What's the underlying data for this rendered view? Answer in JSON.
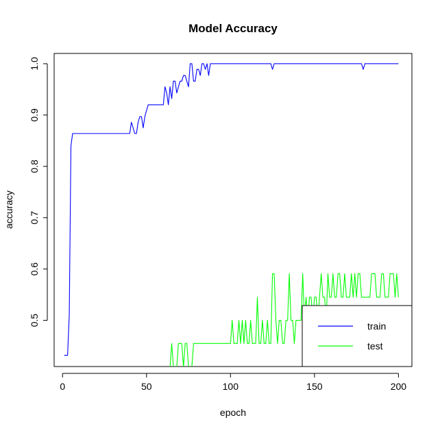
{
  "chart_data": {
    "type": "line",
    "title": "Model Accuracy",
    "xlabel": "epoch",
    "ylabel": "accuracy",
    "xlim": [
      -5,
      208
    ],
    "ylim": [
      0.41,
      1.02
    ],
    "xticks": [
      0,
      50,
      100,
      150,
      200
    ],
    "yticks": [
      0.5,
      0.6,
      0.7,
      0.8,
      0.9,
      1.0
    ],
    "xtick_labels": [
      "0",
      "50",
      "100",
      "150",
      "200"
    ],
    "ytick_labels": [
      "0.5",
      "0.6",
      "0.7",
      "0.8",
      "0.9",
      "1.0"
    ],
    "grid": false,
    "legend_position": "bottom-right",
    "series": [
      {
        "name": "train",
        "color": "#0000ff",
        "points": [
          [
            1,
            0.432
          ],
          [
            2,
            0.432
          ],
          [
            3,
            0.432
          ],
          [
            4,
            0.51
          ],
          [
            5,
            0.84
          ],
          [
            6,
            0.864
          ],
          [
            10,
            0.864
          ],
          [
            20,
            0.864
          ],
          [
            30,
            0.864
          ],
          [
            40,
            0.864
          ],
          [
            41,
            0.886
          ],
          [
            42,
            0.875
          ],
          [
            43,
            0.864
          ],
          [
            44,
            0.864
          ],
          [
            45,
            0.886
          ],
          [
            46,
            0.897
          ],
          [
            47,
            0.897
          ],
          [
            48,
            0.875
          ],
          [
            49,
            0.897
          ],
          [
            50,
            0.909
          ],
          [
            51,
            0.92
          ],
          [
            55,
            0.92
          ],
          [
            59,
            0.92
          ],
          [
            60,
            0.92
          ],
          [
            61,
            0.955
          ],
          [
            62,
            0.943
          ],
          [
            63,
            0.92
          ],
          [
            64,
            0.955
          ],
          [
            65,
            0.932
          ],
          [
            66,
            0.966
          ],
          [
            67,
            0.966
          ],
          [
            68,
            0.943
          ],
          [
            69,
            0.955
          ],
          [
            70,
            0.966
          ],
          [
            71,
            0.966
          ],
          [
            72,
            0.977
          ],
          [
            73,
            0.977
          ],
          [
            74,
            0.966
          ],
          [
            75,
            0.955
          ],
          [
            76,
            1.0
          ],
          [
            77,
            1.0
          ],
          [
            78,
            0.966
          ],
          [
            79,
            0.966
          ],
          [
            80,
            0.989
          ],
          [
            81,
            0.989
          ],
          [
            82,
            0.977
          ],
          [
            83,
            1.0
          ],
          [
            84,
            1.0
          ],
          [
            85,
            0.989
          ],
          [
            86,
            1.0
          ],
          [
            87,
            0.977
          ],
          [
            88,
            1.0
          ],
          [
            90,
            1.0
          ],
          [
            100,
            1.0
          ],
          [
            110,
            1.0
          ],
          [
            120,
            1.0
          ],
          [
            124,
            1.0
          ],
          [
            125,
            0.989
          ],
          [
            126,
            1.0
          ],
          [
            130,
            1.0
          ],
          [
            150,
            1.0
          ],
          [
            170,
            1.0
          ],
          [
            178,
            1.0
          ],
          [
            179,
            0.989
          ],
          [
            180,
            1.0
          ],
          [
            190,
            1.0
          ],
          [
            200,
            1.0
          ]
        ]
      },
      {
        "name": "test",
        "color": "#00ff00",
        "points": [
          [
            1,
            0.409
          ],
          [
            30,
            0.409
          ],
          [
            60,
            0.409
          ],
          [
            64,
            0.409
          ],
          [
            65,
            0.455
          ],
          [
            66,
            0.409
          ],
          [
            67,
            0.409
          ],
          [
            68,
            0.409
          ],
          [
            69,
            0.455
          ],
          [
            70,
            0.455
          ],
          [
            71,
            0.455
          ],
          [
            72,
            0.409
          ],
          [
            73,
            0.455
          ],
          [
            74,
            0.455
          ],
          [
            75,
            0.409
          ],
          [
            76,
            0.409
          ],
          [
            77,
            0.409
          ],
          [
            78,
            0.455
          ],
          [
            80,
            0.455
          ],
          [
            90,
            0.455
          ],
          [
            100,
            0.455
          ],
          [
            101,
            0.5
          ],
          [
            102,
            0.455
          ],
          [
            103,
            0.455
          ],
          [
            104,
            0.455
          ],
          [
            105,
            0.5
          ],
          [
            106,
            0.455
          ],
          [
            107,
            0.5
          ],
          [
            108,
            0.455
          ],
          [
            109,
            0.5
          ],
          [
            110,
            0.455
          ],
          [
            111,
            0.455
          ],
          [
            112,
            0.5
          ],
          [
            113,
            0.455
          ],
          [
            114,
            0.455
          ],
          [
            115,
            0.455
          ],
          [
            116,
            0.545
          ],
          [
            117,
            0.455
          ],
          [
            118,
            0.455
          ],
          [
            119,
            0.5
          ],
          [
            120,
            0.455
          ],
          [
            121,
            0.455
          ],
          [
            122,
            0.5
          ],
          [
            123,
            0.455
          ],
          [
            124,
            0.455
          ],
          [
            125,
            0.591
          ],
          [
            126,
            0.591
          ],
          [
            127,
            0.5
          ],
          [
            128,
            0.455
          ],
          [
            129,
            0.5
          ],
          [
            130,
            0.5
          ],
          [
            131,
            0.455
          ],
          [
            132,
            0.455
          ],
          [
            133,
            0.5
          ],
          [
            134,
            0.5
          ],
          [
            135,
            0.591
          ],
          [
            136,
            0.5
          ],
          [
            137,
            0.5
          ],
          [
            138,
            0.455
          ],
          [
            139,
            0.5
          ],
          [
            140,
            0.5
          ],
          [
            141,
            0.5
          ],
          [
            142,
            0.5
          ],
          [
            143,
            0.591
          ],
          [
            144,
            0.5
          ],
          [
            145,
            0.545
          ],
          [
            146,
            0.5
          ],
          [
            147,
            0.545
          ],
          [
            148,
            0.545
          ],
          [
            149,
            0.5
          ],
          [
            150,
            0.545
          ],
          [
            151,
            0.545
          ],
          [
            152,
            0.5
          ],
          [
            153,
            0.545
          ],
          [
            154,
            0.591
          ],
          [
            155,
            0.545
          ],
          [
            156,
            0.545
          ],
          [
            157,
            0.5
          ],
          [
            158,
            0.591
          ],
          [
            159,
            0.545
          ],
          [
            160,
            0.545
          ],
          [
            161,
            0.591
          ],
          [
            162,
            0.545
          ],
          [
            163,
            0.545
          ],
          [
            164,
            0.591
          ],
          [
            165,
            0.591
          ],
          [
            166,
            0.545
          ],
          [
            167,
            0.545
          ],
          [
            168,
            0.591
          ],
          [
            169,
            0.545
          ],
          [
            170,
            0.545
          ],
          [
            171,
            0.545
          ],
          [
            172,
            0.591
          ],
          [
            173,
            0.545
          ],
          [
            174,
            0.591
          ],
          [
            175,
            0.545
          ],
          [
            176,
            0.591
          ],
          [
            177,
            0.591
          ],
          [
            178,
            0.545
          ],
          [
            179,
            0.545
          ],
          [
            180,
            0.545
          ],
          [
            181,
            0.545
          ],
          [
            182,
            0.545
          ],
          [
            183,
            0.545
          ],
          [
            184,
            0.591
          ],
          [
            185,
            0.591
          ],
          [
            186,
            0.591
          ],
          [
            187,
            0.545
          ],
          [
            188,
            0.545
          ],
          [
            189,
            0.545
          ],
          [
            190,
            0.591
          ],
          [
            191,
            0.591
          ],
          [
            192,
            0.545
          ],
          [
            193,
            0.545
          ],
          [
            194,
            0.545
          ],
          [
            195,
            0.591
          ],
          [
            196,
            0.591
          ],
          [
            197,
            0.591
          ],
          [
            198,
            0.545
          ],
          [
            199,
            0.591
          ],
          [
            200,
            0.545
          ]
        ]
      }
    ]
  }
}
